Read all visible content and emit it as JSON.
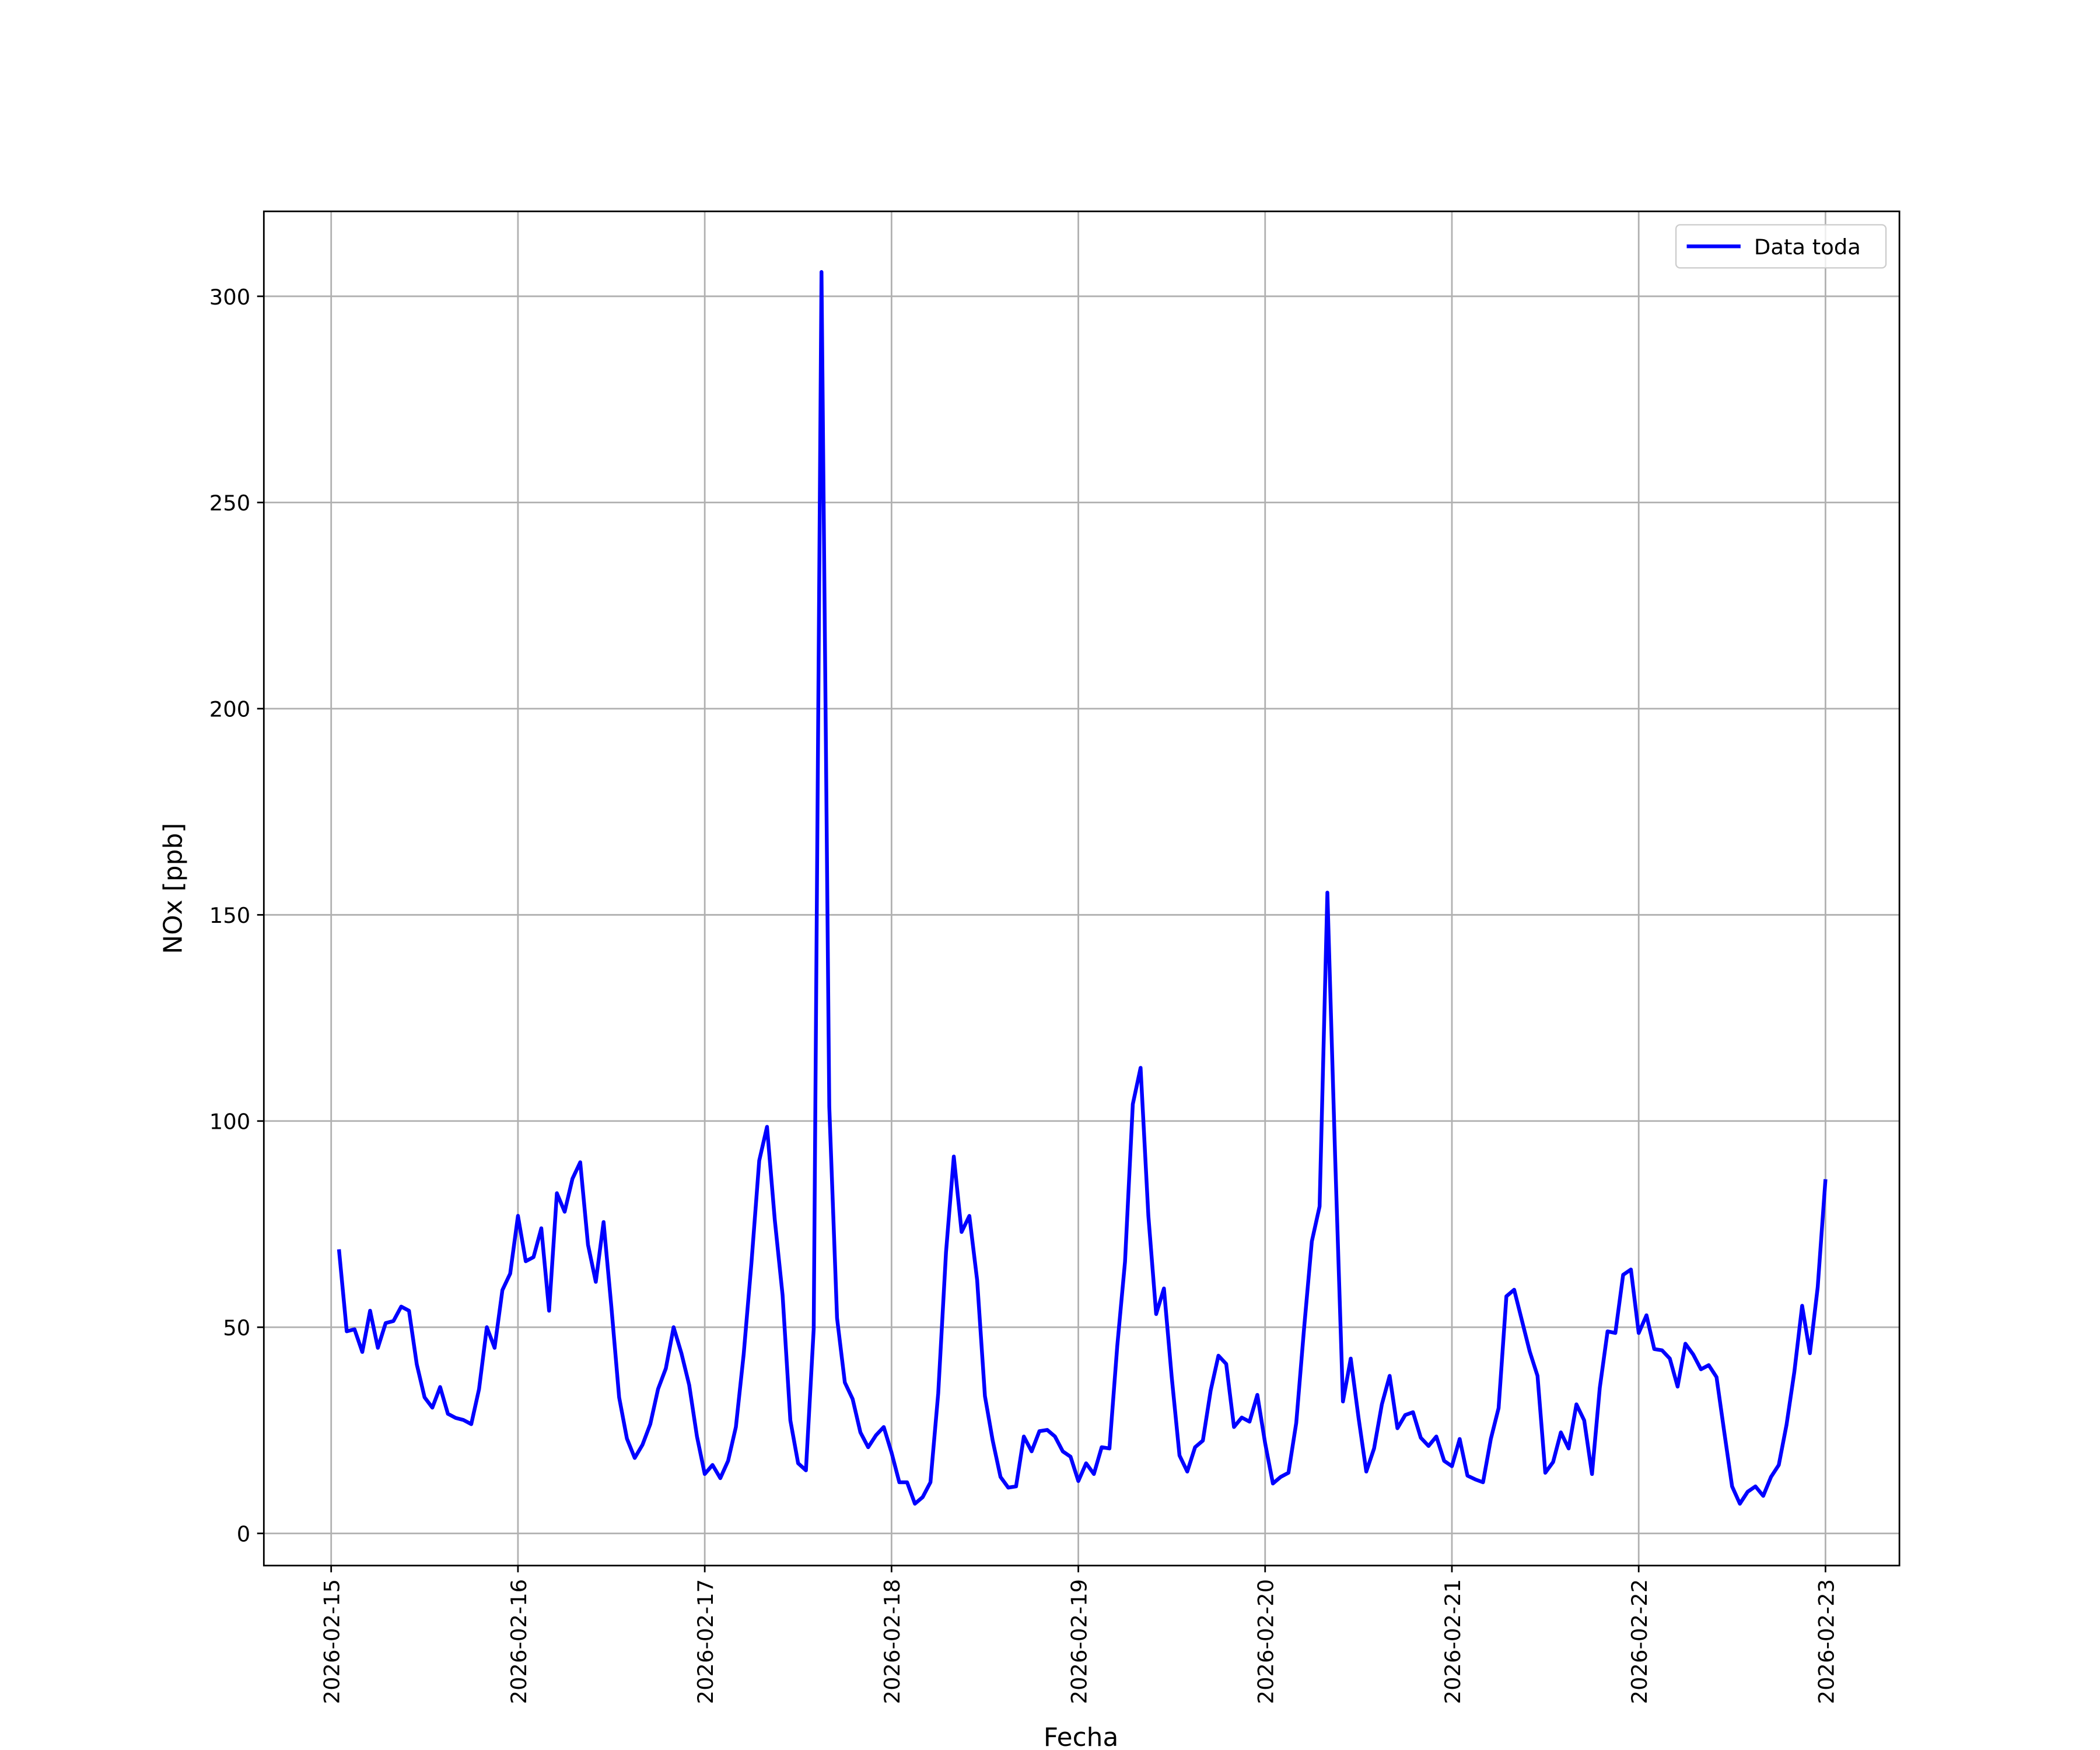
{
  "chart_data": {
    "type": "line",
    "xlabel": "Fecha",
    "ylabel": "NOx [ppb]",
    "x": [
      "2026-02-15 01:00",
      "2026-02-15 02:00",
      "2026-02-15 03:00",
      "2026-02-15 04:00",
      "2026-02-15 05:00",
      "2026-02-15 06:00",
      "2026-02-15 07:00",
      "2026-02-15 08:00",
      "2026-02-15 09:00",
      "2026-02-15 10:00",
      "2026-02-15 11:00",
      "2026-02-15 12:00",
      "2026-02-15 13:00",
      "2026-02-15 14:00",
      "2026-02-15 15:00",
      "2026-02-15 16:00",
      "2026-02-15 17:00",
      "2026-02-15 18:00",
      "2026-02-15 19:00",
      "2026-02-15 20:00",
      "2026-02-15 21:00",
      "2026-02-15 22:00",
      "2026-02-15 23:00",
      "2026-02-16 00:00",
      "2026-02-16 01:00",
      "2026-02-16 02:00",
      "2026-02-16 03:00",
      "2026-02-16 04:00",
      "2026-02-16 05:00",
      "2026-02-16 06:00",
      "2026-02-16 07:00",
      "2026-02-16 08:00",
      "2026-02-16 09:00",
      "2026-02-16 10:00",
      "2026-02-16 11:00",
      "2026-02-16 12:00",
      "2026-02-16 13:00",
      "2026-02-16 14:00",
      "2026-02-16 15:00",
      "2026-02-16 16:00",
      "2026-02-16 17:00",
      "2026-02-16 18:00",
      "2026-02-16 19:00",
      "2026-02-16 20:00",
      "2026-02-16 21:00",
      "2026-02-16 22:00",
      "2026-02-16 23:00",
      "2026-02-17 00:00",
      "2026-02-17 01:00",
      "2026-02-17 02:00",
      "2026-02-17 03:00",
      "2026-02-17 04:00",
      "2026-02-17 05:00",
      "2026-02-17 06:00",
      "2026-02-17 07:00",
      "2026-02-17 08:00",
      "2026-02-17 09:00",
      "2026-02-17 10:00",
      "2026-02-17 11:00",
      "2026-02-17 12:00",
      "2026-02-17 13:00",
      "2026-02-17 14:00",
      "2026-02-17 15:00",
      "2026-02-17 16:00",
      "2026-02-17 17:00",
      "2026-02-17 18:00",
      "2026-02-17 19:00",
      "2026-02-17 20:00",
      "2026-02-17 21:00",
      "2026-02-17 22:00",
      "2026-02-17 23:00",
      "2026-02-18 00:00",
      "2026-02-18 01:00",
      "2026-02-18 02:00",
      "2026-02-18 03:00",
      "2026-02-18 04:00",
      "2026-02-18 05:00",
      "2026-02-18 06:00",
      "2026-02-18 07:00",
      "2026-02-18 08:00",
      "2026-02-18 09:00",
      "2026-02-18 10:00",
      "2026-02-18 11:00",
      "2026-02-18 12:00",
      "2026-02-18 13:00",
      "2026-02-18 14:00",
      "2026-02-18 15:00",
      "2026-02-18 16:00",
      "2026-02-18 17:00",
      "2026-02-18 18:00",
      "2026-02-18 19:00",
      "2026-02-18 20:00",
      "2026-02-18 21:00",
      "2026-02-18 22:00",
      "2026-02-18 23:00",
      "2026-02-19 00:00",
      "2026-02-19 01:00",
      "2026-02-19 02:00",
      "2026-02-19 03:00",
      "2026-02-19 04:00",
      "2026-02-19 05:00",
      "2026-02-19 06:00",
      "2026-02-19 07:00",
      "2026-02-19 08:00",
      "2026-02-19 09:00",
      "2026-02-19 10:00",
      "2026-02-19 11:00",
      "2026-02-19 12:00",
      "2026-02-19 13:00",
      "2026-02-19 14:00",
      "2026-02-19 15:00",
      "2026-02-19 16:00",
      "2026-02-19 17:00",
      "2026-02-19 18:00",
      "2026-02-19 19:00",
      "2026-02-19 20:00",
      "2026-02-19 21:00",
      "2026-02-19 22:00",
      "2026-02-19 23:00",
      "2026-02-20 00:00",
      "2026-02-20 01:00",
      "2026-02-20 02:00",
      "2026-02-20 03:00",
      "2026-02-20 04:00",
      "2026-02-20 05:00",
      "2026-02-20 06:00",
      "2026-02-20 07:00",
      "2026-02-20 08:00",
      "2026-02-20 09:00",
      "2026-02-20 10:00",
      "2026-02-20 11:00",
      "2026-02-20 12:00",
      "2026-02-20 13:00",
      "2026-02-20 14:00",
      "2026-02-20 15:00",
      "2026-02-20 16:00",
      "2026-02-20 17:00",
      "2026-02-20 18:00",
      "2026-02-20 19:00",
      "2026-02-20 20:00",
      "2026-02-20 21:00",
      "2026-02-20 22:00",
      "2026-02-20 23:00",
      "2026-02-21 00:00",
      "2026-02-21 01:00",
      "2026-02-21 02:00",
      "2026-02-21 03:00",
      "2026-02-21 04:00",
      "2026-02-21 05:00",
      "2026-02-21 06:00",
      "2026-02-21 07:00",
      "2026-02-21 08:00",
      "2026-02-21 09:00",
      "2026-02-21 10:00",
      "2026-02-21 11:00",
      "2026-02-21 12:00",
      "2026-02-21 13:00",
      "2026-02-21 14:00",
      "2026-02-21 15:00",
      "2026-02-21 16:00",
      "2026-02-21 17:00",
      "2026-02-21 18:00",
      "2026-02-21 19:00",
      "2026-02-21 20:00",
      "2026-02-21 21:00",
      "2026-02-21 22:00",
      "2026-02-21 23:00",
      "2026-02-22 00:00",
      "2026-02-22 01:00",
      "2026-02-22 02:00",
      "2026-02-22 03:00",
      "2026-02-22 04:00",
      "2026-02-22 05:00",
      "2026-02-22 06:00",
      "2026-02-22 07:00",
      "2026-02-22 08:00",
      "2026-02-22 09:00",
      "2026-02-22 10:00",
      "2026-02-22 11:00",
      "2026-02-22 12:00",
      "2026-02-22 13:00",
      "2026-02-22 14:00",
      "2026-02-22 15:00",
      "2026-02-22 16:00",
      "2026-02-22 17:00",
      "2026-02-22 18:00",
      "2026-02-22 19:00",
      "2026-02-22 20:00",
      "2026-02-22 21:00",
      "2026-02-22 22:00",
      "2026-02-22 23:00",
      "2026-02-23 00:00"
    ],
    "series": [
      {
        "name": "Data toda",
        "color": "#0000ff",
        "values": [
          68.9,
          49,
          49.5,
          44,
          54,
          45,
          51,
          51.5,
          55,
          54,
          41,
          33,
          30.5,
          35.5,
          29,
          28,
          27.5,
          26.5,
          35,
          50,
          45,
          59,
          63,
          77,
          66,
          67,
          74,
          54,
          82.5,
          78,
          86,
          90,
          70,
          61,
          75.5,
          55,
          33,
          23,
          18.3,
          21.5,
          26.5,
          35,
          40,
          50,
          43.7,
          36,
          23.5,
          14.4,
          16.6,
          13.4,
          17.6,
          25.8,
          43.4,
          65.6,
          90.4,
          98.6,
          76,
          57.8,
          27.4,
          17,
          15.3,
          49.6,
          305.9,
          103.5,
          52.2,
          36.6,
          32.6,
          24.5,
          20.9,
          23.8,
          25.8,
          19.6,
          12.4,
          12.4,
          7.2,
          8.8,
          12.4,
          34,
          68.2,
          91.4,
          73.1,
          77,
          61.4,
          33.3,
          22.5,
          13.7,
          11.1,
          11.4,
          23.5,
          19.9,
          24.8,
          25.1,
          23.5,
          19.9,
          18.6,
          12.7,
          17,
          14.4,
          20.9,
          20.6,
          45.4,
          65.9,
          104.1,
          112.9,
          77,
          53.2,
          59.4,
          37.9,
          18.9,
          15,
          20.9,
          22.5,
          34.6,
          43.1,
          41.1,
          25.8,
          28.1,
          27.1,
          33.6,
          21.9,
          12.1,
          13.7,
          14.7,
          26.8,
          49.6,
          70.8,
          79.3,
          155.4,
          91.1,
          32,
          42.4,
          28.1,
          15,
          20.6,
          31.3,
          38.2,
          25.5,
          28.7,
          29.4,
          23.2,
          21.2,
          23.5,
          17.6,
          16.3,
          22.9,
          14,
          13.1,
          12.4,
          22.9,
          30.4,
          57.5,
          59.1,
          51.6,
          44.1,
          38.2,
          14.7,
          17.3,
          24.5,
          20.6,
          31.3,
          27.4,
          14.4,
          35.3,
          49,
          48.6,
          62.7,
          64,
          48.6,
          52.9,
          44.7,
          44.4,
          42.4,
          35.6,
          46,
          43.4,
          39.8,
          40.8,
          37.9,
          24.5,
          11.4,
          7.2,
          10.1,
          11.4,
          9.1,
          13.7,
          16.6,
          26.4,
          39.2,
          55.2,
          43.7,
          59.7,
          85.9
        ]
      }
    ],
    "xlim": [
      "2026-02-14 15:21",
      "2026-02-23 09:30"
    ],
    "xticks": [
      "2026-02-15",
      "2026-02-16",
      "2026-02-17",
      "2026-02-18",
      "2026-02-19",
      "2026-02-20",
      "2026-02-21",
      "2026-02-22",
      "2026-02-23"
    ],
    "ylim": [
      -7.8,
      320.6
    ],
    "yticks": [
      0,
      50,
      100,
      150,
      200,
      250,
      300
    ],
    "grid": true,
    "legend": "upper right"
  }
}
